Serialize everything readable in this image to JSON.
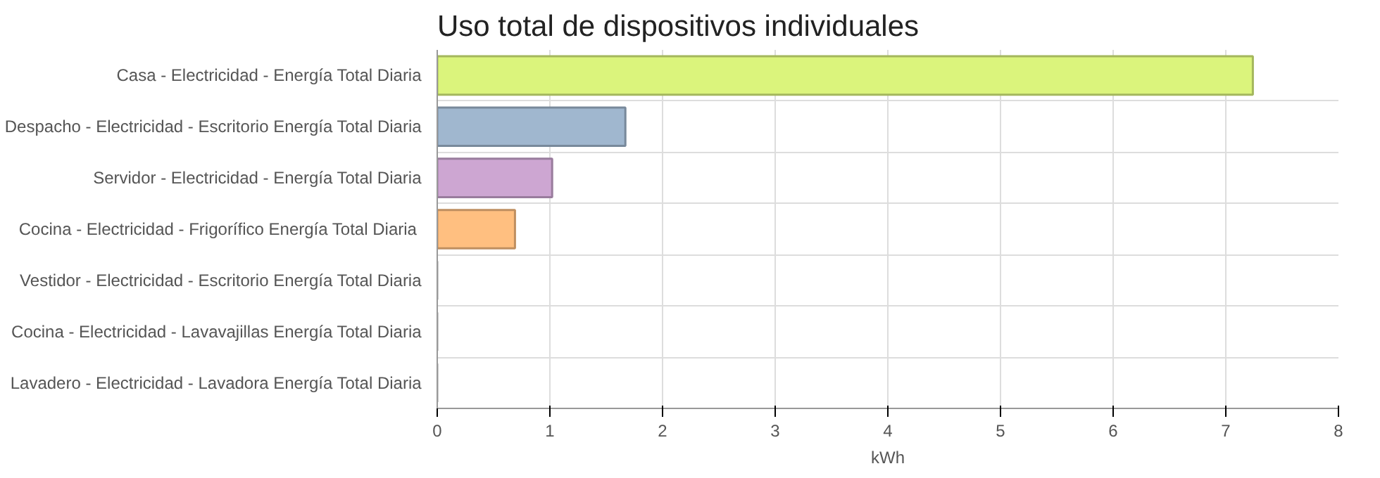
{
  "chart_data": {
    "type": "bar",
    "orientation": "horizontal",
    "title": "Uso total de dispositivos individuales",
    "xlabel": "kWh",
    "categories": [
      "Casa - Electricidad - Energía Total Diaria",
      "Despacho - Electricidad - Escritorio Energía Total Diaria",
      "Servidor - Electricidad - Energía Total Diaria",
      "Cocina  - Electricidad - Frigorífico Energía Total Diaria",
      "Vestidor - Electricidad - Escritorio Energía Total Diaria",
      "Cocina - Electricidad - Lavavajillas Energía Total Diaria",
      "Lavadero - Electricidad - Lavadora Energía Total Diaria"
    ],
    "values": [
      7.24,
      1.67,
      1.02,
      0.69,
      0,
      0,
      0
    ],
    "colors": [
      "#dbf47c",
      "#a0b7cf",
      "#cda6d2",
      "#ffbf80",
      "#cccccc",
      "#cccccc",
      "#cccccc"
    ],
    "xlim": [
      0,
      8
    ],
    "xticks": [
      0,
      1,
      2,
      3,
      4,
      5,
      6,
      7,
      8
    ],
    "grid": true
  }
}
